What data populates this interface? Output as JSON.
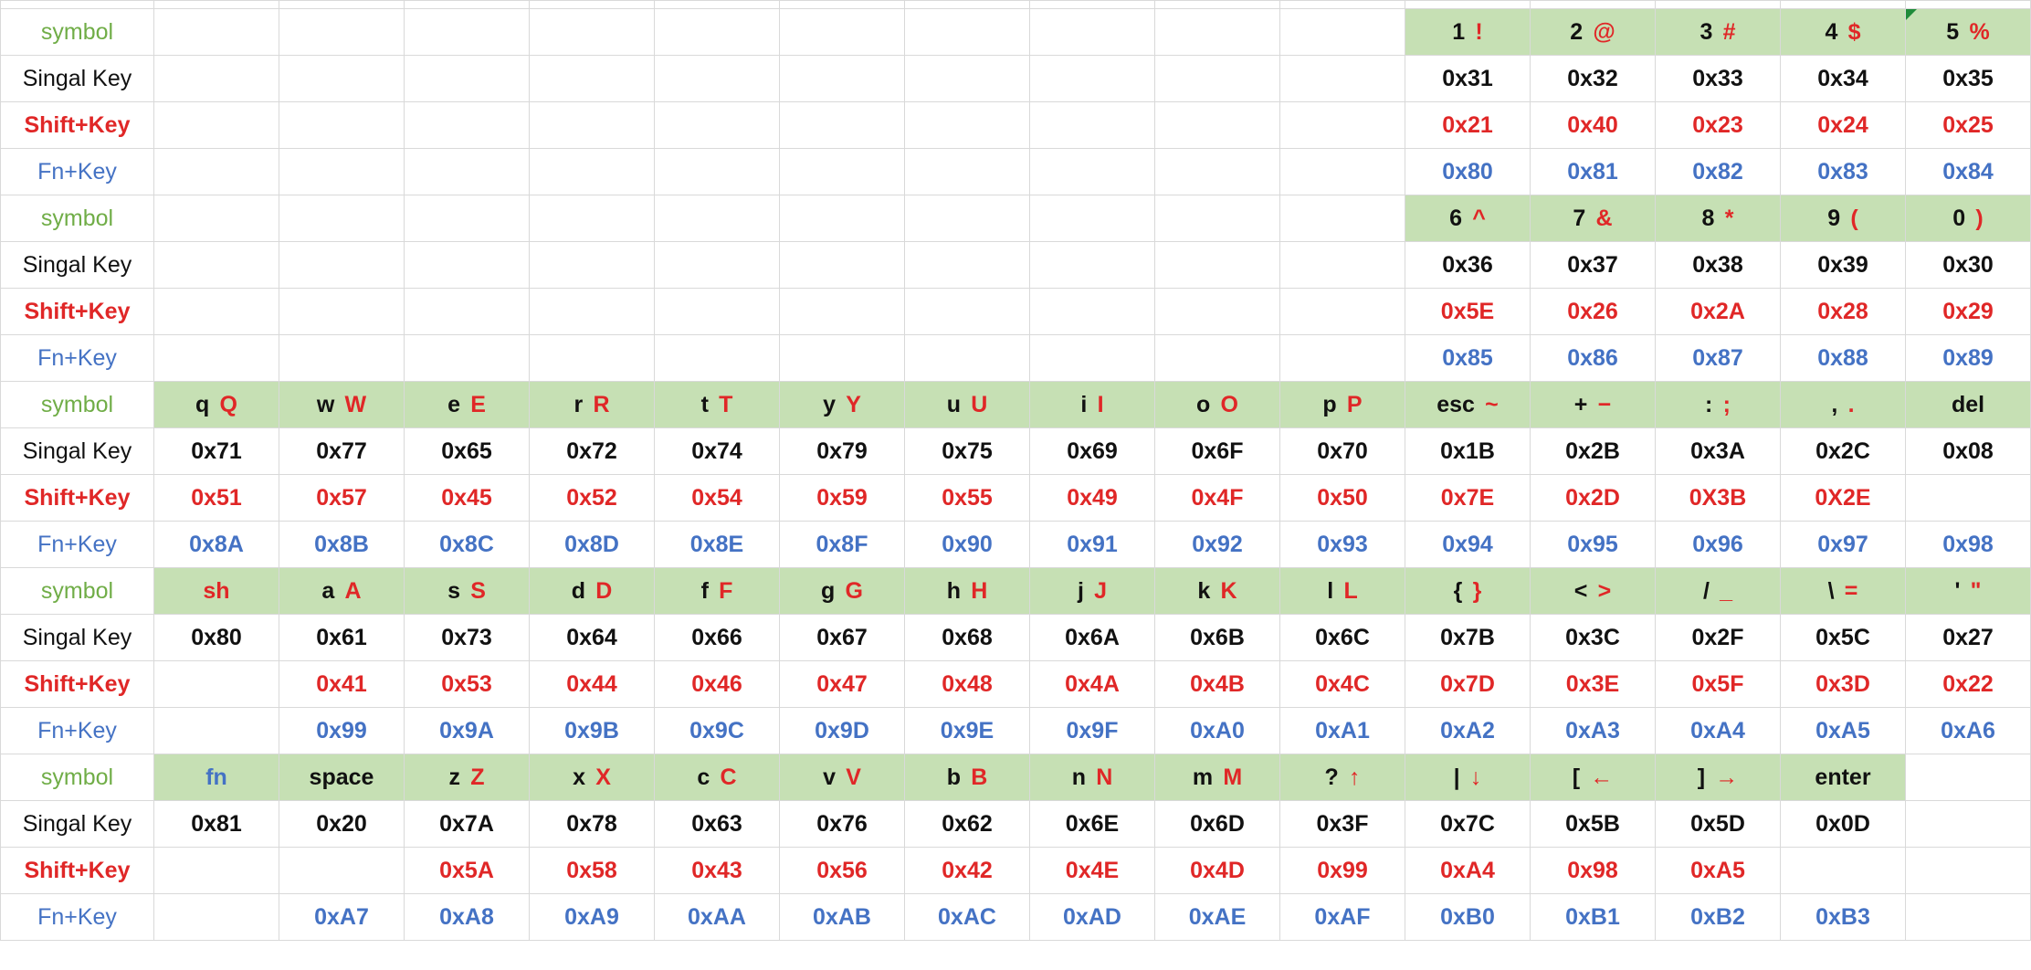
{
  "row_labels": {
    "symbol": "symbol",
    "single": "Singal Key",
    "shift": "Shift+Key",
    "fn": "Fn+Key"
  },
  "blocks": [
    {
      "offset": 10,
      "symbols": [
        {
          "k1": "1",
          "k2": "!"
        },
        {
          "k1": "2",
          "k2": "@"
        },
        {
          "k1": "3",
          "k2": "#"
        },
        {
          "k1": "4",
          "k2": "$"
        },
        {
          "k1": "5",
          "k2": "%"
        }
      ],
      "single": [
        "0x31",
        "0x32",
        "0x33",
        "0x34",
        "0x35"
      ],
      "shift": [
        "0x21",
        "0x40",
        "0x23",
        "0x24",
        "0x25"
      ],
      "fn": [
        "0x80",
        "0x81",
        "0x82",
        "0x83",
        "0x84"
      ]
    },
    {
      "offset": 10,
      "symbols": [
        {
          "k1": "6",
          "k2": "^"
        },
        {
          "k1": "7",
          "k2": "&"
        },
        {
          "k1": "8",
          "k2": "*"
        },
        {
          "k1": "9",
          "k2": "("
        },
        {
          "k1": "0",
          "k2": ")"
        }
      ],
      "single": [
        "0x36",
        "0x37",
        "0x38",
        "0x39",
        "0x30"
      ],
      "shift": [
        "0x5E",
        "0x26",
        "0x2A",
        "0x28",
        "0x29"
      ],
      "fn": [
        "0x85",
        "0x86",
        "0x87",
        "0x88",
        "0x89"
      ]
    },
    {
      "offset": 0,
      "symbols": [
        {
          "k1": "q",
          "k2": "Q"
        },
        {
          "k1": "w",
          "k2": "W"
        },
        {
          "k1": "e",
          "k2": "E"
        },
        {
          "k1": "r",
          "k2": "R"
        },
        {
          "k1": "t",
          "k2": "T"
        },
        {
          "k1": "y",
          "k2": "Y"
        },
        {
          "k1": "u",
          "k2": "U"
        },
        {
          "k1": "i",
          "k2": "I"
        },
        {
          "k1": "o",
          "k2": "O"
        },
        {
          "k1": "p",
          "k2": "P"
        },
        {
          "k1": "esc",
          "k2": "~"
        },
        {
          "k1": "+",
          "k2": "−"
        },
        {
          "k1": ":",
          "k2": ";"
        },
        {
          "k1": ",",
          "k2": "."
        },
        {
          "k1": "del",
          "k2": ""
        }
      ],
      "single": [
        "0x71",
        "0x77",
        "0x65",
        "0x72",
        "0x74",
        "0x79",
        "0x75",
        "0x69",
        "0x6F",
        "0x70",
        "0x1B",
        "0x2B",
        "0x3A",
        "0x2C",
        "0x08"
      ],
      "shift": [
        "0x51",
        "0x57",
        "0x45",
        "0x52",
        "0x54",
        "0x59",
        "0x55",
        "0x49",
        "0x4F",
        "0x50",
        "0x7E",
        "0x2D",
        "0X3B",
        "0X2E",
        ""
      ],
      "fn": [
        "0x8A",
        "0x8B",
        "0x8C",
        "0x8D",
        "0x8E",
        "0x8F",
        "0x90",
        "0x91",
        "0x92",
        "0x93",
        "0x94",
        "0x95",
        "0x96",
        "0x97",
        "0x98"
      ]
    },
    {
      "offset": 0,
      "symbols": [
        {
          "k1": "",
          "k2": "sh"
        },
        {
          "k1": "a",
          "k2": "A"
        },
        {
          "k1": "s",
          "k2": "S"
        },
        {
          "k1": "d",
          "k2": "D"
        },
        {
          "k1": "f",
          "k2": "F"
        },
        {
          "k1": "g",
          "k2": "G"
        },
        {
          "k1": "h",
          "k2": "H"
        },
        {
          "k1": "j",
          "k2": "J"
        },
        {
          "k1": "k",
          "k2": "K"
        },
        {
          "k1": "l",
          "k2": "L"
        },
        {
          "k1": "{",
          "k2": "}"
        },
        {
          "k1": "<",
          "k2": ">"
        },
        {
          "k1": "/",
          "k2": "_"
        },
        {
          "k1": "\\",
          "k2": "="
        },
        {
          "k1": "'",
          "k2": "\""
        }
      ],
      "single": [
        "0x80",
        "0x61",
        "0x73",
        "0x64",
        "0x66",
        "0x67",
        "0x68",
        "0x6A",
        "0x6B",
        "0x6C",
        "0x7B",
        "0x3C",
        "0x2F",
        "0x5C",
        "0x27"
      ],
      "shift": [
        "",
        "0x41",
        "0x53",
        "0x44",
        "0x46",
        "0x47",
        "0x48",
        "0x4A",
        "0x4B",
        "0x4C",
        "0x7D",
        "0x3E",
        "0x5F",
        "0x3D",
        "0x22"
      ],
      "fn": [
        "",
        "0x99",
        "0x9A",
        "0x9B",
        "0x9C",
        "0x9D",
        "0x9E",
        "0x9F",
        "0xA0",
        "0xA1",
        "0xA2",
        "0xA3",
        "0xA4",
        "0xA5",
        "0xA6"
      ]
    },
    {
      "offset": 0,
      "symbols": [
        {
          "k1": "",
          "k2": "fn",
          "k2color": "blue"
        },
        {
          "k1": "space",
          "k2": ""
        },
        {
          "k1": "z",
          "k2": "Z"
        },
        {
          "k1": "x",
          "k2": "X"
        },
        {
          "k1": "c",
          "k2": "C"
        },
        {
          "k1": "v",
          "k2": "V"
        },
        {
          "k1": "b",
          "k2": "B"
        },
        {
          "k1": "n",
          "k2": "N"
        },
        {
          "k1": "m",
          "k2": "M"
        },
        {
          "k1": "?",
          "k2": "↑"
        },
        {
          "k1": "|",
          "k2": "↓"
        },
        {
          "k1": "[",
          "k2": "←"
        },
        {
          "k1": "]",
          "k2": "→"
        },
        {
          "k1": "enter",
          "k2": ""
        }
      ],
      "single": [
        "0x81",
        "0x20",
        "0x7A",
        "0x78",
        "0x63",
        "0x76",
        "0x62",
        "0x6E",
        "0x6D",
        "0x3F",
        "0x7C",
        "0x5B",
        "0x5D",
        "0x0D"
      ],
      "shift": [
        "",
        "",
        "0x5A",
        "0x58",
        "0x43",
        "0x56",
        "0x42",
        "0x4E",
        "0x4D",
        "0x99",
        "0xA4",
        "0x98",
        "0xA5",
        ""
      ],
      "fn": [
        "",
        "0xA7",
        "0xA8",
        "0xA9",
        "0xAA",
        "0xAB",
        "0xAC",
        "0xAD",
        "0xAE",
        "0xAF",
        "0xB0",
        "0xB1",
        "0xB2",
        "0xB3"
      ]
    }
  ]
}
